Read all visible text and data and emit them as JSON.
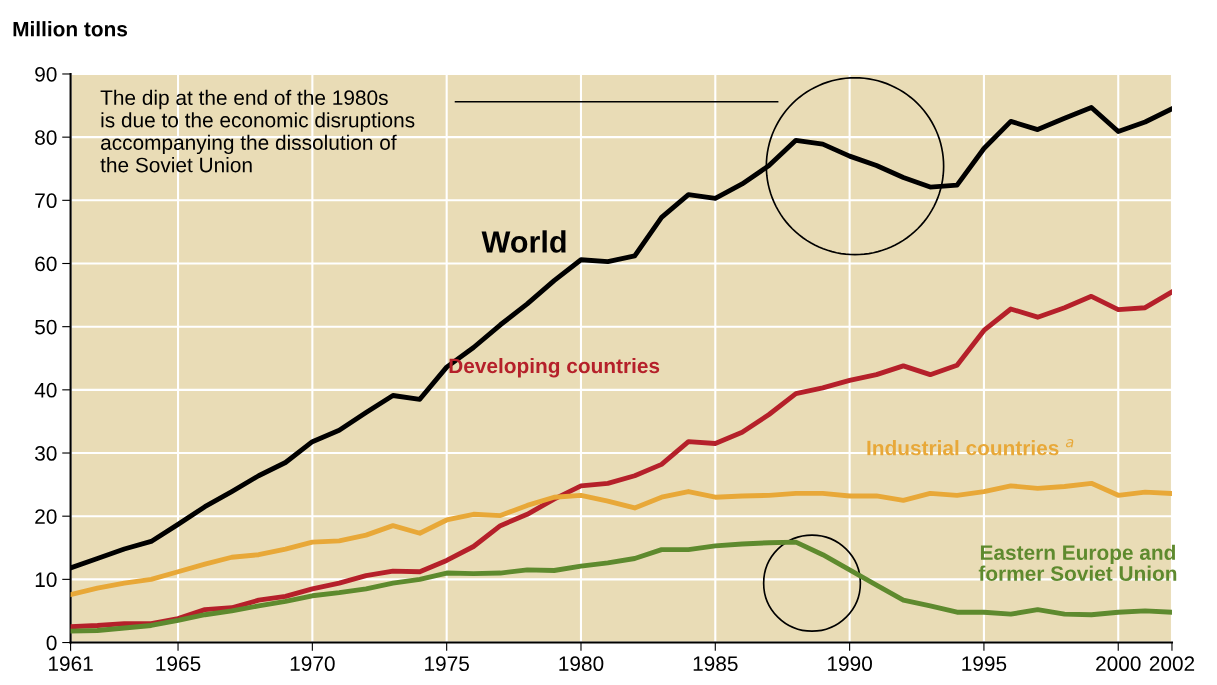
{
  "chart_data": {
    "type": "line",
    "ylabel": "Million tons",
    "x": [
      1961,
      1962,
      1963,
      1964,
      1965,
      1966,
      1967,
      1968,
      1969,
      1970,
      1971,
      1972,
      1973,
      1974,
      1975,
      1976,
      1977,
      1978,
      1979,
      1980,
      1981,
      1982,
      1983,
      1984,
      1985,
      1986,
      1987,
      1988,
      1989,
      1990,
      1991,
      1992,
      1993,
      1994,
      1995,
      1996,
      1997,
      1998,
      1999,
      2000,
      2001,
      2002
    ],
    "series": [
      {
        "name": "World",
        "color": "#000000",
        "values": [
          11.8,
          13.3,
          14.8,
          16.0,
          18.7,
          21.5,
          23.9,
          26.4,
          28.5,
          31.8,
          33.6,
          36.4,
          39.1,
          38.5,
          43.6,
          46.7,
          50.3,
          53.6,
          57.3,
          60.6,
          60.3,
          61.2,
          67.3,
          70.9,
          70.3,
          72.6,
          75.5,
          79.5,
          78.9,
          77.0,
          75.5,
          73.6,
          72.1,
          72.4,
          78.2,
          82.5,
          81.2,
          83.0,
          84.7,
          80.9,
          82.4,
          84.5
        ]
      },
      {
        "name": "Developing countries",
        "color": "#b5202a",
        "values": [
          2.5,
          2.7,
          3.0,
          3.0,
          3.8,
          5.2,
          5.5,
          6.7,
          7.3,
          8.5,
          9.4,
          10.6,
          11.3,
          11.2,
          13.0,
          15.2,
          18.5,
          20.3,
          22.7,
          24.8,
          25.2,
          26.4,
          28.2,
          31.8,
          31.5,
          33.3,
          36.1,
          39.4,
          40.3,
          41.5,
          42.4,
          43.8,
          42.4,
          43.9,
          49.4,
          52.8,
          51.5,
          53.0,
          54.8,
          52.7,
          53.0,
          55.5
        ]
      },
      {
        "name": "Industrial countries $^{a}$",
        "color": "#e8a838",
        "values": [
          7.6,
          8.6,
          9.4,
          10.0,
          11.2,
          12.4,
          13.5,
          13.9,
          14.8,
          15.9,
          16.1,
          17.0,
          18.5,
          17.3,
          19.4,
          20.3,
          20.1,
          21.7,
          23.0,
          23.3,
          22.4,
          21.3,
          23.0,
          23.9,
          23.0,
          23.2,
          23.3,
          23.6,
          23.6,
          23.2,
          23.2,
          22.5,
          23.6,
          23.3,
          23.9,
          24.8,
          24.4,
          24.7,
          25.2,
          23.3,
          23.8,
          23.6
        ]
      },
      {
        "name": "Eastern Europe and\nformer Soviet Union",
        "color": "#5e8a2e",
        "values": [
          1.8,
          1.9,
          2.3,
          2.7,
          3.5,
          4.4,
          5.0,
          5.8,
          6.5,
          7.4,
          7.9,
          8.5,
          9.4,
          10.0,
          11.0,
          10.9,
          11.0,
          11.5,
          11.4,
          12.1,
          12.6,
          13.3,
          14.7,
          14.7,
          15.3,
          15.6,
          15.8,
          15.9,
          13.9,
          11.5,
          9.1,
          6.7,
          5.8,
          4.8,
          4.8,
          4.5,
          5.2,
          4.5,
          4.4,
          4.8,
          5.0,
          4.8
        ]
      }
    ],
    "xlim": [
      1961,
      2002
    ],
    "xticks": [
      1961,
      1965,
      1970,
      1975,
      1980,
      1985,
      1990,
      1995,
      2000,
      2002
    ],
    "ylim": [
      0,
      90
    ],
    "yticks": [
      0,
      10,
      20,
      30,
      40,
      50,
      60,
      70,
      80,
      90
    ],
    "grid": true,
    "legend": false,
    "marker": "none",
    "line_style": "solid",
    "annotations": [
      "The dip at the end of the 1980s\nis due to the economic disruptions\naccompanying the dissolution of\nthe Soviet Union"
    ]
  }
}
